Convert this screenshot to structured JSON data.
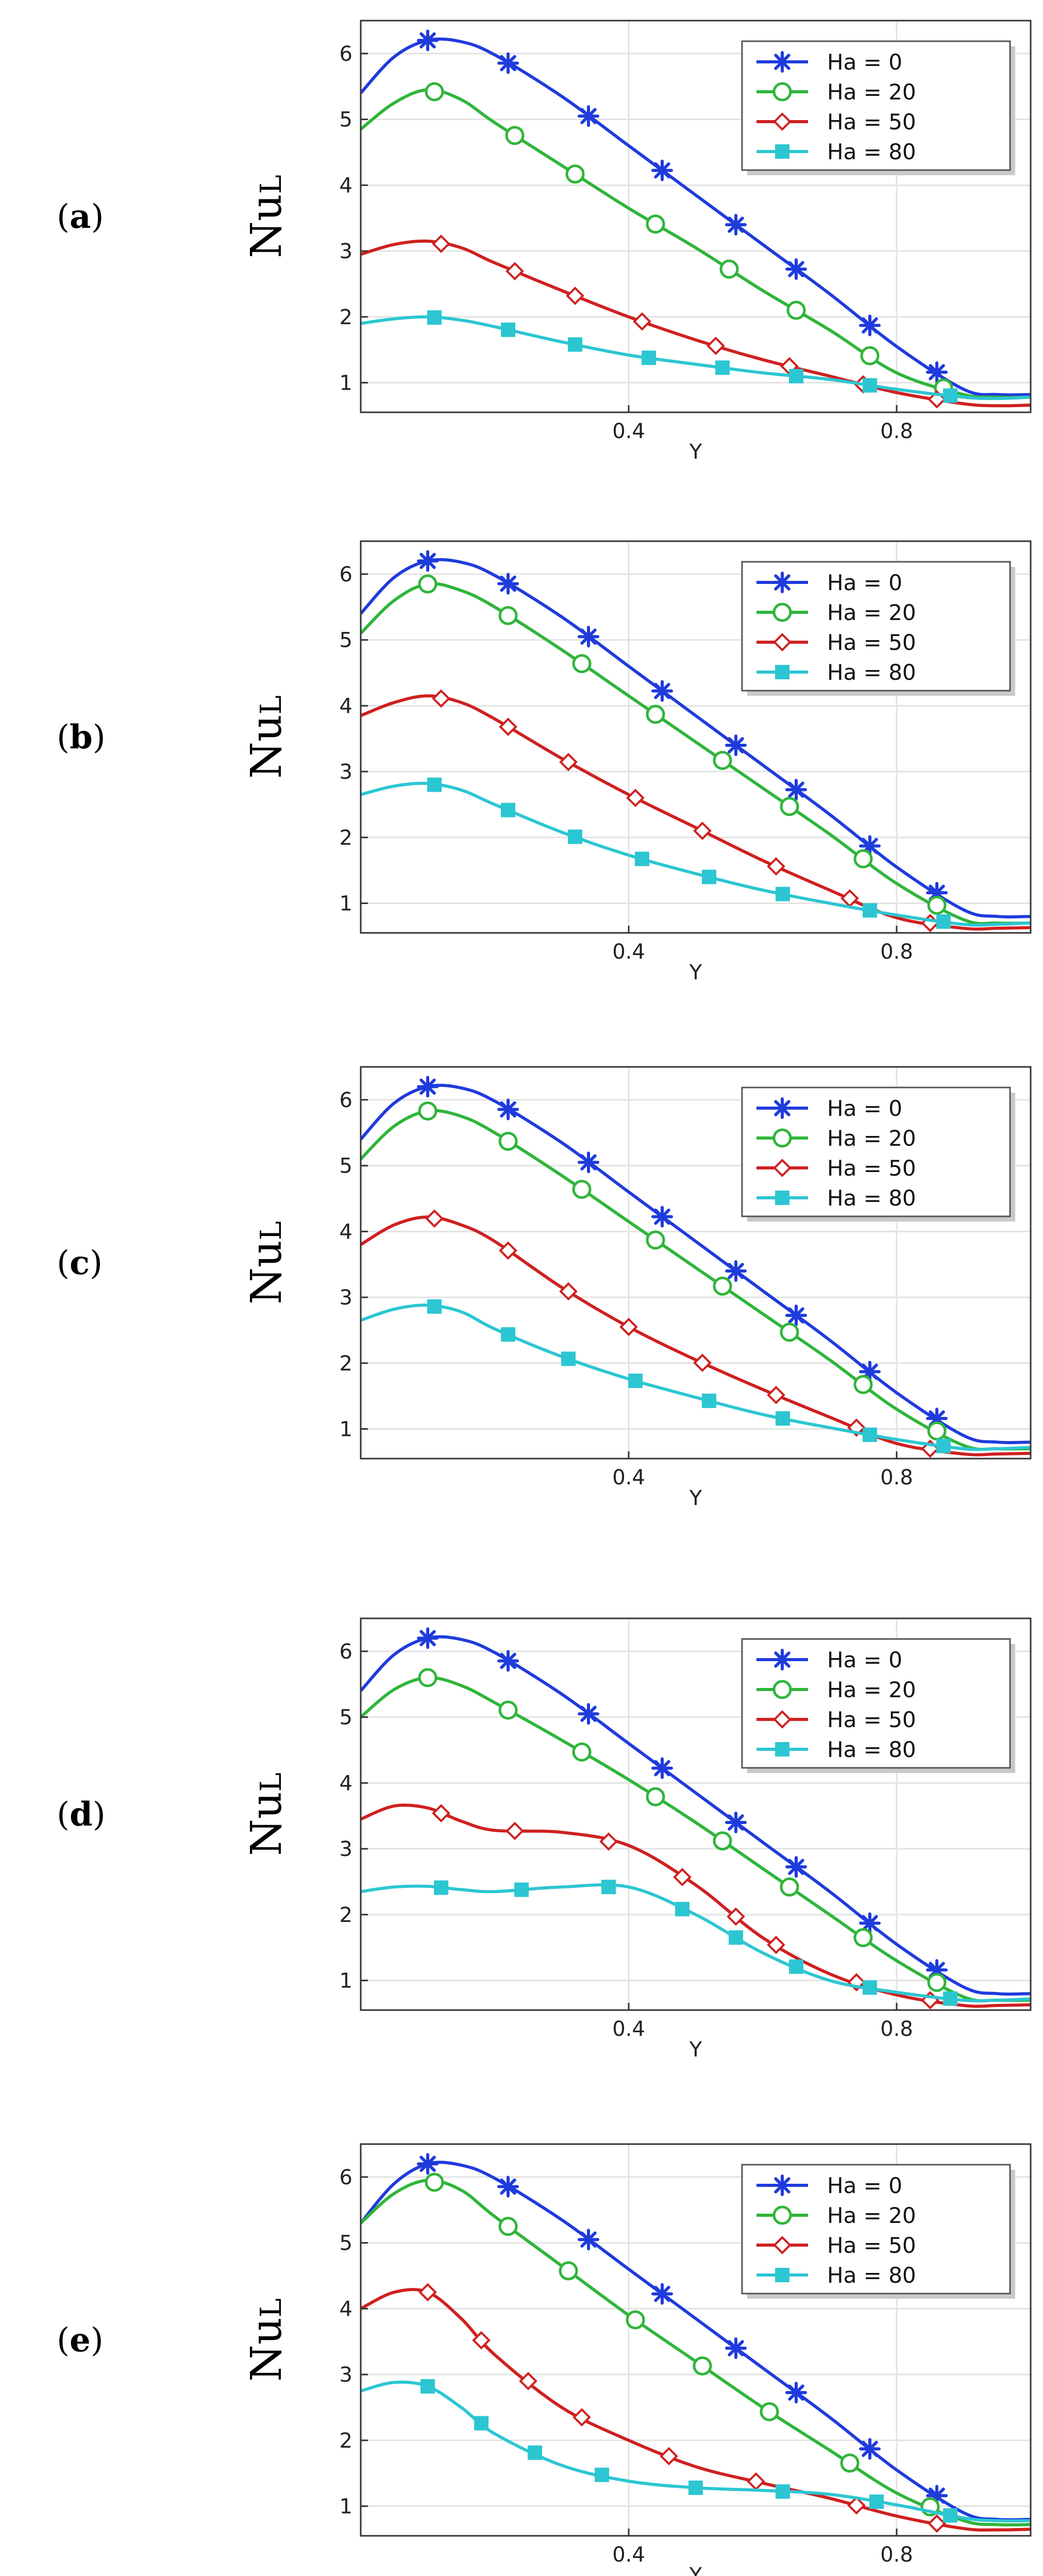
{
  "figure": {
    "series_colors": [
      "#1f3bdc",
      "#2fb53a",
      "#cf2020",
      "#2cc6d2"
    ],
    "marker_shapes": [
      "asterisk",
      "circle",
      "diamond",
      "square"
    ]
  },
  "chart_data": [
    {
      "type": "line",
      "panel_label": "a",
      "ylabel": "Nu",
      "ylabel_sub": "L",
      "xlabel": "Y",
      "xlim": [
        0,
        1
      ],
      "ylim": [
        0.55,
        6.5
      ],
      "xticks": [
        0.4,
        0.8
      ],
      "yticks": [
        1,
        2,
        3,
        4,
        5,
        6
      ],
      "grid": true,
      "legend_position": "top-right",
      "series": [
        {
          "name": "Ha = 0",
          "x": [
            0,
            0.05,
            0.1,
            0.15,
            0.2,
            0.3,
            0.4,
            0.5,
            0.6,
            0.7,
            0.8,
            0.9,
            0.95,
            1.0
          ],
          "y": [
            5.4,
            5.95,
            6.2,
            6.18,
            5.98,
            5.35,
            4.6,
            3.85,
            3.1,
            2.35,
            1.55,
            0.9,
            0.82,
            0.82
          ],
          "marker_x": [
            0.1,
            0.22,
            0.34,
            0.45,
            0.56,
            0.65,
            0.76,
            0.86
          ]
        },
        {
          "name": "Ha = 20",
          "x": [
            0,
            0.05,
            0.1,
            0.15,
            0.2,
            0.3,
            0.4,
            0.5,
            0.6,
            0.7,
            0.8,
            0.9,
            0.95,
            1.0
          ],
          "y": [
            4.85,
            5.25,
            5.45,
            5.3,
            4.95,
            4.3,
            3.65,
            3.05,
            2.4,
            1.8,
            1.15,
            0.82,
            0.78,
            0.78
          ],
          "marker_x": [
            0.11,
            0.23,
            0.32,
            0.44,
            0.55,
            0.65,
            0.76,
            0.87
          ]
        },
        {
          "name": "Ha = 50",
          "x": [
            0,
            0.05,
            0.1,
            0.15,
            0.2,
            0.3,
            0.4,
            0.5,
            0.6,
            0.7,
            0.8,
            0.9,
            0.95,
            1.0
          ],
          "y": [
            2.95,
            3.1,
            3.15,
            3.05,
            2.82,
            2.4,
            2.0,
            1.65,
            1.35,
            1.1,
            0.85,
            0.68,
            0.65,
            0.66
          ],
          "marker_x": [
            0.12,
            0.23,
            0.32,
            0.42,
            0.53,
            0.64,
            0.75,
            0.86
          ]
        },
        {
          "name": "Ha = 80",
          "x": [
            0,
            0.05,
            0.1,
            0.15,
            0.2,
            0.3,
            0.4,
            0.5,
            0.6,
            0.7,
            0.8,
            0.9,
            0.95,
            1.0
          ],
          "y": [
            1.9,
            1.97,
            2.0,
            1.95,
            1.85,
            1.62,
            1.42,
            1.28,
            1.15,
            1.05,
            0.9,
            0.78,
            0.76,
            0.78
          ],
          "marker_x": [
            0.11,
            0.22,
            0.32,
            0.43,
            0.54,
            0.65,
            0.76,
            0.88
          ]
        }
      ],
      "legend_entries": [
        "Ha = 0",
        "Ha = 20",
        "Ha = 50",
        "Ha = 80"
      ]
    },
    {
      "type": "line",
      "panel_label": "b",
      "ylabel": "Nu",
      "ylabel_sub": "L",
      "xlabel": "Y",
      "xlim": [
        0,
        1
      ],
      "ylim": [
        0.55,
        6.5
      ],
      "xticks": [
        0.4,
        0.8
      ],
      "yticks": [
        1,
        2,
        3,
        4,
        5,
        6
      ],
      "grid": true,
      "legend_position": "top-right",
      "series": [
        {
          "name": "Ha = 0",
          "x": [
            0,
            0.05,
            0.1,
            0.15,
            0.2,
            0.3,
            0.4,
            0.5,
            0.6,
            0.7,
            0.8,
            0.9,
            0.95,
            1.0
          ],
          "y": [
            5.4,
            5.95,
            6.2,
            6.18,
            5.98,
            5.35,
            4.6,
            3.85,
            3.1,
            2.35,
            1.55,
            0.9,
            0.8,
            0.8
          ],
          "marker_x": [
            0.1,
            0.22,
            0.34,
            0.45,
            0.56,
            0.65,
            0.76,
            0.86
          ]
        },
        {
          "name": "Ha = 20",
          "x": [
            0,
            0.05,
            0.1,
            0.15,
            0.2,
            0.3,
            0.4,
            0.5,
            0.6,
            0.7,
            0.8,
            0.9,
            0.95,
            1.0
          ],
          "y": [
            5.1,
            5.6,
            5.85,
            5.75,
            5.5,
            4.85,
            4.15,
            3.45,
            2.75,
            2.05,
            1.3,
            0.75,
            0.7,
            0.7
          ],
          "marker_x": [
            0.1,
            0.22,
            0.33,
            0.44,
            0.54,
            0.64,
            0.75,
            0.86
          ]
        },
        {
          "name": "Ha = 50",
          "x": [
            0,
            0.05,
            0.1,
            0.15,
            0.2,
            0.3,
            0.4,
            0.5,
            0.6,
            0.7,
            0.8,
            0.9,
            0.95,
            1.0
          ],
          "y": [
            3.85,
            4.05,
            4.15,
            4.05,
            3.8,
            3.2,
            2.65,
            2.15,
            1.65,
            1.2,
            0.78,
            0.62,
            0.62,
            0.63
          ],
          "marker_x": [
            0.12,
            0.22,
            0.31,
            0.41,
            0.51,
            0.62,
            0.73,
            0.85
          ]
        },
        {
          "name": "Ha = 80",
          "x": [
            0,
            0.05,
            0.1,
            0.15,
            0.2,
            0.3,
            0.4,
            0.5,
            0.6,
            0.7,
            0.8,
            0.9,
            0.95,
            1.0
          ],
          "y": [
            2.65,
            2.78,
            2.82,
            2.72,
            2.5,
            2.08,
            1.73,
            1.45,
            1.2,
            1.0,
            0.82,
            0.68,
            0.68,
            0.7
          ],
          "marker_x": [
            0.11,
            0.22,
            0.32,
            0.42,
            0.52,
            0.63,
            0.76,
            0.87
          ]
        }
      ],
      "legend_entries": [
        "Ha = 0",
        "Ha = 20",
        "Ha = 50",
        "Ha = 80"
      ]
    },
    {
      "type": "line",
      "panel_label": "c",
      "ylabel": "Nu",
      "ylabel_sub": "L",
      "xlabel": "Y",
      "xlim": [
        0,
        1
      ],
      "ylim": [
        0.55,
        6.5
      ],
      "xticks": [
        0.4,
        0.8
      ],
      "yticks": [
        1,
        2,
        3,
        4,
        5,
        6
      ],
      "grid": true,
      "legend_position": "top-right",
      "series": [
        {
          "name": "Ha = 0",
          "x": [
            0,
            0.05,
            0.1,
            0.15,
            0.2,
            0.3,
            0.4,
            0.5,
            0.6,
            0.7,
            0.8,
            0.9,
            0.95,
            1.0
          ],
          "y": [
            5.4,
            5.95,
            6.2,
            6.18,
            5.98,
            5.35,
            4.6,
            3.85,
            3.1,
            2.35,
            1.55,
            0.9,
            0.8,
            0.8
          ],
          "marker_x": [
            0.1,
            0.22,
            0.34,
            0.45,
            0.56,
            0.65,
            0.76,
            0.86
          ]
        },
        {
          "name": "Ha = 20",
          "x": [
            0,
            0.05,
            0.1,
            0.15,
            0.2,
            0.3,
            0.4,
            0.5,
            0.6,
            0.7,
            0.8,
            0.9,
            0.95,
            1.0
          ],
          "y": [
            5.1,
            5.6,
            5.83,
            5.75,
            5.5,
            4.85,
            4.15,
            3.45,
            2.75,
            2.05,
            1.3,
            0.75,
            0.7,
            0.7
          ],
          "marker_x": [
            0.1,
            0.22,
            0.33,
            0.44,
            0.54,
            0.64,
            0.75,
            0.86
          ]
        },
        {
          "name": "Ha = 50",
          "x": [
            0,
            0.05,
            0.1,
            0.15,
            0.2,
            0.3,
            0.4,
            0.5,
            0.6,
            0.7,
            0.8,
            0.9,
            0.95,
            1.0
          ],
          "y": [
            3.8,
            4.1,
            4.22,
            4.1,
            3.85,
            3.15,
            2.55,
            2.05,
            1.6,
            1.18,
            0.78,
            0.62,
            0.62,
            0.63
          ],
          "marker_x": [
            0.11,
            0.22,
            0.31,
            0.4,
            0.51,
            0.62,
            0.74,
            0.85
          ]
        },
        {
          "name": "Ha = 80",
          "x": [
            0,
            0.05,
            0.1,
            0.15,
            0.2,
            0.3,
            0.4,
            0.5,
            0.6,
            0.7,
            0.8,
            0.9,
            0.95,
            1.0
          ],
          "y": [
            2.65,
            2.82,
            2.88,
            2.78,
            2.52,
            2.1,
            1.76,
            1.48,
            1.22,
            1.02,
            0.84,
            0.7,
            0.7,
            0.72
          ],
          "marker_x": [
            0.11,
            0.22,
            0.31,
            0.41,
            0.52,
            0.63,
            0.76,
            0.87
          ]
        }
      ],
      "legend_entries": [
        "Ha = 0",
        "Ha = 20",
        "Ha = 50",
        "Ha = 80"
      ]
    },
    {
      "type": "line",
      "panel_label": "d",
      "ylabel": "Nu",
      "ylabel_sub": "L",
      "xlabel": "Y",
      "xlim": [
        0,
        1
      ],
      "ylim": [
        0.55,
        6.5
      ],
      "xticks": [
        0.4,
        0.8
      ],
      "yticks": [
        1,
        2,
        3,
        4,
        5,
        6
      ],
      "grid": true,
      "legend_position": "top-right",
      "series": [
        {
          "name": "Ha = 0",
          "x": [
            0,
            0.05,
            0.1,
            0.15,
            0.2,
            0.3,
            0.4,
            0.5,
            0.6,
            0.7,
            0.8,
            0.9,
            0.95,
            1.0
          ],
          "y": [
            5.4,
            5.95,
            6.2,
            6.18,
            5.98,
            5.35,
            4.6,
            3.85,
            3.1,
            2.35,
            1.55,
            0.9,
            0.8,
            0.8
          ],
          "marker_x": [
            0.1,
            0.22,
            0.34,
            0.45,
            0.56,
            0.65,
            0.76,
            0.86
          ]
        },
        {
          "name": "Ha = 20",
          "x": [
            0,
            0.05,
            0.1,
            0.15,
            0.2,
            0.3,
            0.4,
            0.5,
            0.6,
            0.7,
            0.8,
            0.9,
            0.95,
            1.0
          ],
          "y": [
            5.0,
            5.42,
            5.6,
            5.48,
            5.22,
            4.65,
            4.05,
            3.4,
            2.7,
            2.0,
            1.3,
            0.75,
            0.7,
            0.7
          ],
          "marker_x": [
            0.1,
            0.22,
            0.33,
            0.44,
            0.54,
            0.64,
            0.75,
            0.86
          ]
        },
        {
          "name": "Ha = 50",
          "x": [
            0,
            0.05,
            0.1,
            0.15,
            0.2,
            0.3,
            0.4,
            0.5,
            0.6,
            0.7,
            0.8,
            0.9,
            0.95,
            1.0
          ],
          "y": [
            3.45,
            3.65,
            3.62,
            3.42,
            3.28,
            3.25,
            3.05,
            2.45,
            1.65,
            1.1,
            0.78,
            0.62,
            0.62,
            0.63
          ],
          "marker_x": [
            0.12,
            0.23,
            0.37,
            0.48,
            0.56,
            0.62,
            0.74,
            0.85
          ]
        },
        {
          "name": "Ha = 80",
          "x": [
            0,
            0.05,
            0.1,
            0.15,
            0.2,
            0.3,
            0.4,
            0.5,
            0.6,
            0.7,
            0.8,
            0.9,
            0.95,
            1.0
          ],
          "y": [
            2.35,
            2.42,
            2.43,
            2.38,
            2.35,
            2.42,
            2.42,
            2.0,
            1.42,
            1.0,
            0.82,
            0.7,
            0.7,
            0.72
          ],
          "marker_x": [
            0.12,
            0.24,
            0.37,
            0.48,
            0.56,
            0.65,
            0.76,
            0.88
          ]
        }
      ],
      "legend_entries": [
        "Ha = 0",
        "Ha = 20",
        "Ha = 50",
        "Ha = 80"
      ]
    },
    {
      "type": "line",
      "panel_label": "e",
      "ylabel": "Nu",
      "ylabel_sub": "L",
      "xlabel": "Y",
      "xlim": [
        0,
        1
      ],
      "ylim": [
        0.55,
        6.5
      ],
      "xticks": [
        0.4,
        0.8
      ],
      "yticks": [
        1,
        2,
        3,
        4,
        5,
        6
      ],
      "grid": true,
      "legend_position": "top-right",
      "series": [
        {
          "name": "Ha = 0",
          "x": [
            0,
            0.05,
            0.1,
            0.15,
            0.2,
            0.3,
            0.4,
            0.5,
            0.6,
            0.7,
            0.8,
            0.9,
            0.95,
            1.0
          ],
          "y": [
            5.3,
            5.9,
            6.2,
            6.18,
            5.98,
            5.35,
            4.6,
            3.85,
            3.1,
            2.35,
            1.55,
            0.9,
            0.8,
            0.8
          ],
          "marker_x": [
            0.1,
            0.22,
            0.34,
            0.45,
            0.56,
            0.65,
            0.76,
            0.86
          ]
        },
        {
          "name": "Ha = 20",
          "x": [
            0,
            0.05,
            0.1,
            0.15,
            0.2,
            0.3,
            0.4,
            0.5,
            0.6,
            0.7,
            0.8,
            0.9,
            0.95,
            1.0
          ],
          "y": [
            5.3,
            5.75,
            5.95,
            5.8,
            5.4,
            4.65,
            3.9,
            3.2,
            2.5,
            1.85,
            1.2,
            0.78,
            0.72,
            0.72
          ],
          "marker_x": [
            0.11,
            0.22,
            0.31,
            0.41,
            0.51,
            0.61,
            0.73,
            0.85
          ]
        },
        {
          "name": "Ha = 50",
          "x": [
            0,
            0.05,
            0.1,
            0.15,
            0.2,
            0.3,
            0.4,
            0.5,
            0.6,
            0.7,
            0.8,
            0.9,
            0.95,
            1.0
          ],
          "y": [
            4.0,
            4.25,
            4.25,
            3.85,
            3.3,
            2.5,
            2.0,
            1.6,
            1.35,
            1.12,
            0.85,
            0.66,
            0.64,
            0.65
          ],
          "marker_x": [
            0.1,
            0.18,
            0.25,
            0.33,
            0.46,
            0.59,
            0.74,
            0.86
          ]
        },
        {
          "name": "Ha = 80",
          "x": [
            0,
            0.05,
            0.1,
            0.15,
            0.2,
            0.3,
            0.4,
            0.5,
            0.6,
            0.7,
            0.8,
            0.9,
            0.95,
            1.0
          ],
          "y": [
            2.75,
            2.88,
            2.82,
            2.5,
            2.1,
            1.62,
            1.38,
            1.28,
            1.24,
            1.18,
            1.02,
            0.82,
            0.78,
            0.78
          ],
          "marker_x": [
            0.1,
            0.18,
            0.26,
            0.36,
            0.5,
            0.63,
            0.77,
            0.88
          ]
        }
      ],
      "legend_entries": [
        "Ha = 0",
        "Ha = 20",
        "Ha = 50",
        "Ha = 80"
      ]
    }
  ]
}
